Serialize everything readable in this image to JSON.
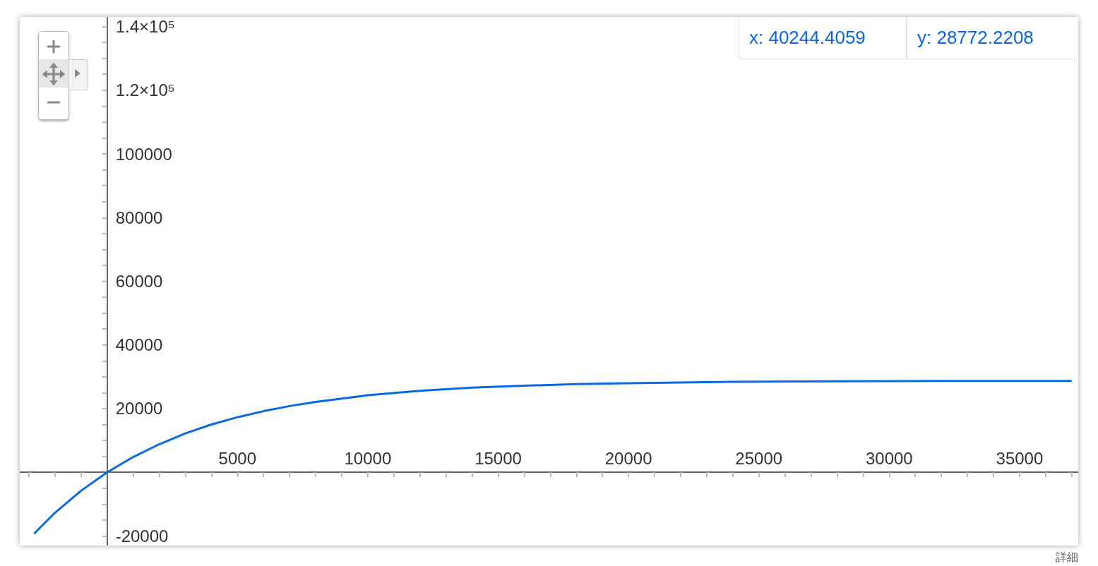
{
  "chart_data": {
    "type": "line",
    "x": [
      -2800,
      -2000,
      -1000,
      0,
      1000,
      2000,
      3000,
      4000,
      5000,
      6000,
      7000,
      8000,
      10000,
      12000,
      14000,
      16000,
      18000,
      20000,
      24000,
      28000,
      32000,
      37000
    ],
    "series": [
      {
        "color": "#0969e0",
        "values": [
          -19300,
          -12700,
          -5800,
          0,
          4800,
          8800,
          12200,
          15000,
          17300,
          19200,
          20800,
          22100,
          24200,
          25600,
          26600,
          27200,
          27700,
          28000,
          28400,
          28600,
          28700,
          28700
        ]
      }
    ],
    "xlim": [
      -3350,
      37250
    ],
    "ylim": [
      -23000,
      143000
    ],
    "xticks": [
      5000,
      10000,
      15000,
      20000,
      25000,
      30000,
      35000
    ],
    "yticks": [
      {
        "value": -20000,
        "label": "-20000"
      },
      20000,
      40000,
      60000,
      80000,
      100000,
      {
        "value": 120000,
        "label": "1.2×10⁵"
      },
      {
        "value": 140000,
        "label": "1.4×10⁵"
      }
    ],
    "grid": false,
    "marker": "none",
    "line_style": "solid",
    "annotations": [
      "x: 40244.4059",
      "y: 28772.2208",
      "詳細"
    ]
  }
}
